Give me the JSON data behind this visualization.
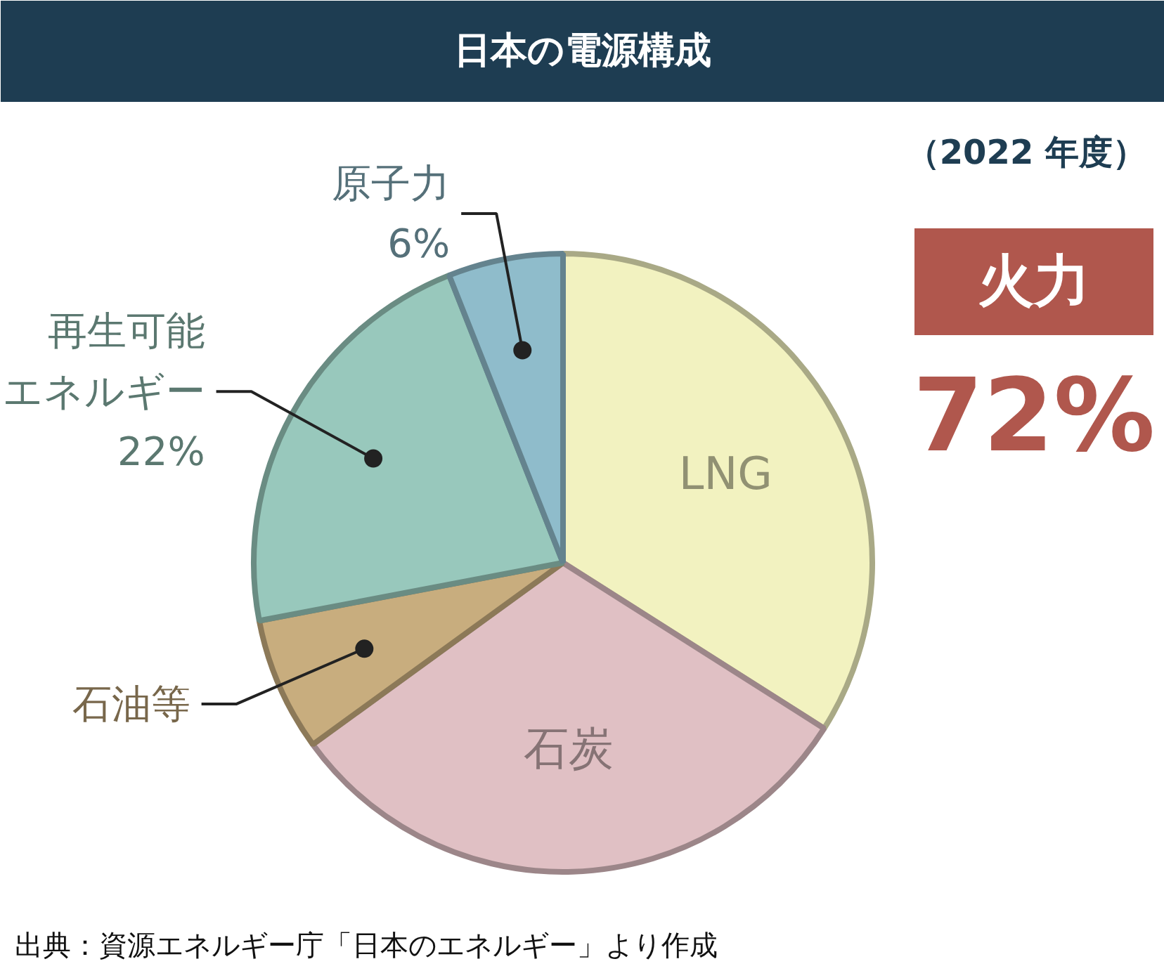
{
  "chart_data": {
    "type": "pie",
    "title": "日本の電源構成",
    "subtitle": "（2022 年度）",
    "categories": [
      "LNG",
      "石炭",
      "石油等",
      "再生可能エネルギー",
      "原子力"
    ],
    "values": [
      34,
      31,
      7,
      22,
      6
    ],
    "value_labels": [
      null,
      null,
      null,
      "22%",
      "6%"
    ],
    "colors": [
      "#f2f2c0",
      "#e0c0c4",
      "#c8ad7e",
      "#98c8bc",
      "#8fbccb"
    ],
    "annotations": [
      "火力",
      "72%",
      "出典：資源エネルギー庁「日本のエネルギー」より作成"
    ]
  }
}
